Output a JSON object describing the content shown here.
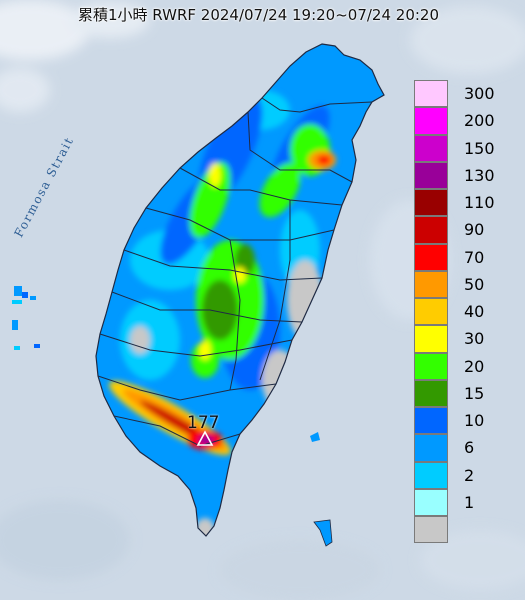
{
  "title": "累積1小時 RWRF 2024/07/24 19:20~07/24 20:20",
  "strait_label": "Formosa Strait",
  "max_value_label": "177",
  "legend": [
    {
      "label": "300",
      "color": "#ffc8ff"
    },
    {
      "label": "200",
      "color": "#ff00ff"
    },
    {
      "label": "150",
      "color": "#cc00cc"
    },
    {
      "label": "130",
      "color": "#990099"
    },
    {
      "label": "110",
      "color": "#990000"
    },
    {
      "label": "90",
      "color": "#cc0000"
    },
    {
      "label": "70",
      "color": "#ff0000"
    },
    {
      "label": "50",
      "color": "#ff9900"
    },
    {
      "label": "40",
      "color": "#ffcc00"
    },
    {
      "label": "30",
      "color": "#ffff00"
    },
    {
      "label": "20",
      "color": "#33ff00"
    },
    {
      "label": "15",
      "color": "#339900"
    },
    {
      "label": "10",
      "color": "#0066ff"
    },
    {
      "label": "6",
      "color": "#0099ff"
    },
    {
      "label": "2",
      "color": "#00ccff"
    },
    {
      "label": "1",
      "color": "#99ffff"
    },
    {
      "label": "",
      "color": "#c8c8c8"
    }
  ],
  "colors": {
    "sea": "#cdd9e6",
    "land_base": "#0099ff",
    "no_rain": "#c8c8c8",
    "border": "#1e2a44"
  }
}
